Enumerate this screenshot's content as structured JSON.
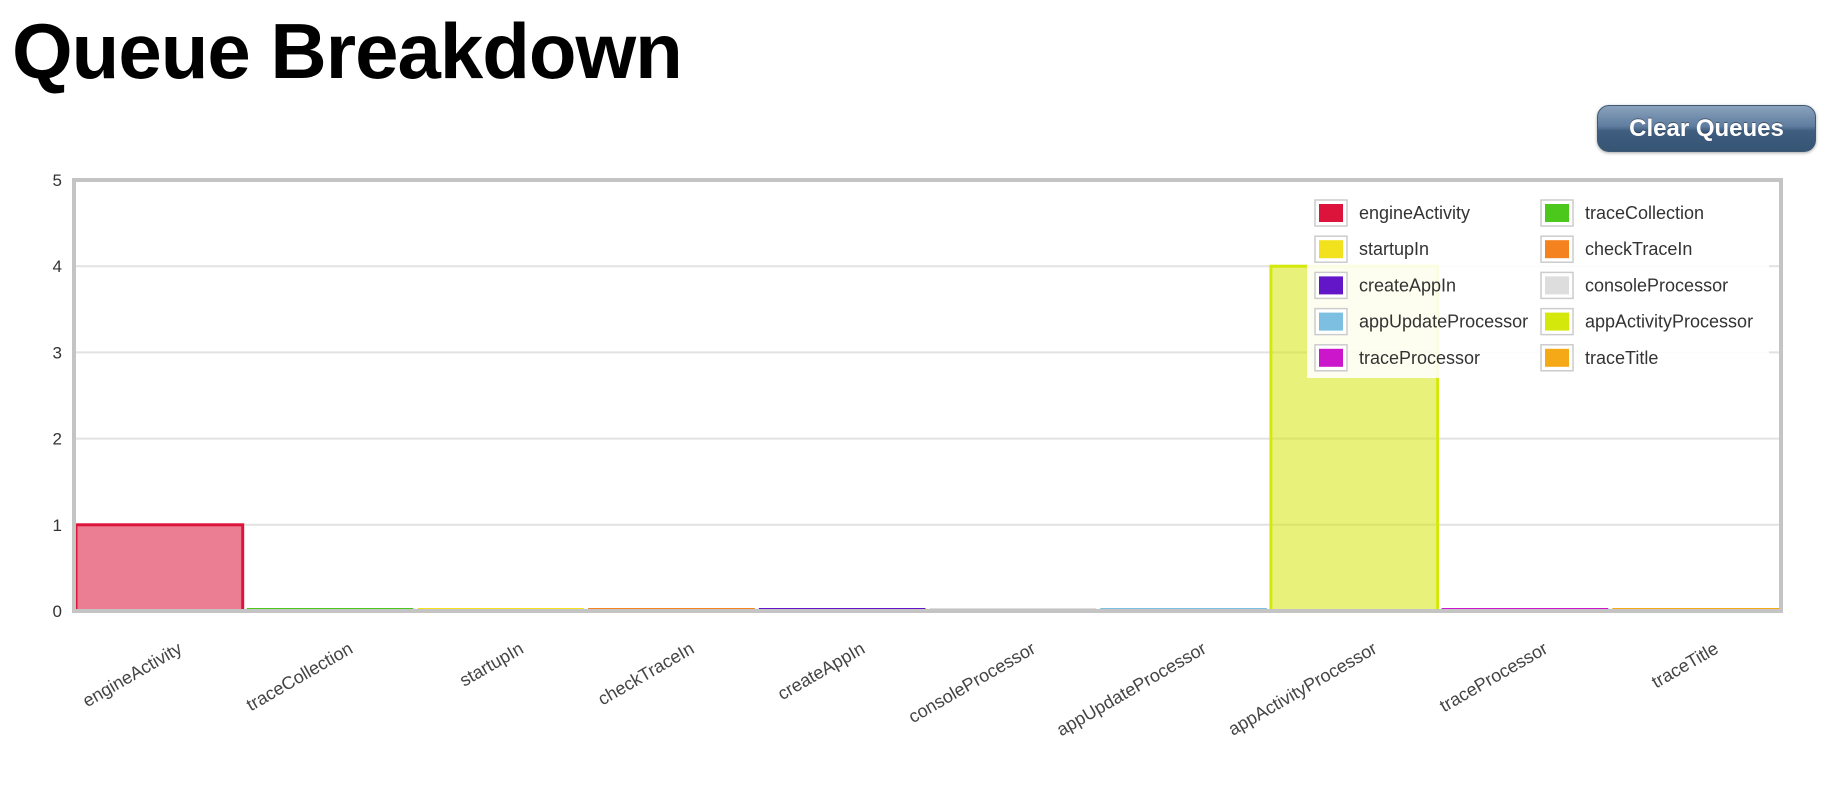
{
  "header": {
    "title": "Queue Breakdown"
  },
  "toolbar": {
    "clear_label": "Clear Queues"
  },
  "chart_data": {
    "type": "bar",
    "title": "",
    "xlabel": "",
    "ylabel": "",
    "ylim": [
      0,
      5
    ],
    "yticks": [
      0,
      1,
      2,
      3,
      4,
      5
    ],
    "grid": true,
    "legend_position": "top-right",
    "categories": [
      "engineActivity",
      "traceCollection",
      "startupIn",
      "checkTraceIn",
      "createAppIn",
      "consoleProcessor",
      "appUpdateProcessor",
      "appActivityProcessor",
      "traceProcessor",
      "traceTitle"
    ],
    "values": [
      1,
      0,
      0,
      0,
      0,
      0,
      0,
      4,
      0,
      0
    ],
    "colors": [
      "#dc143c",
      "#4cc81c",
      "#f2e21d",
      "#f4821e",
      "#6316c8",
      "#dddddd",
      "#7cbfe0",
      "#d5e80c",
      "#cc16cc",
      "#f6a917"
    ],
    "legend": [
      {
        "name": "engineActivity",
        "color": "#dc143c"
      },
      {
        "name": "traceCollection",
        "color": "#4cc81c"
      },
      {
        "name": "startupIn",
        "color": "#f2e21d"
      },
      {
        "name": "checkTraceIn",
        "color": "#f4821e"
      },
      {
        "name": "createAppIn",
        "color": "#6316c8"
      },
      {
        "name": "consoleProcessor",
        "color": "#dddddd"
      },
      {
        "name": "appUpdateProcessor",
        "color": "#7cbfe0"
      },
      {
        "name": "appActivityProcessor",
        "color": "#d5e80c"
      },
      {
        "name": "traceProcessor",
        "color": "#cc16cc"
      },
      {
        "name": "traceTitle",
        "color": "#f6a917"
      }
    ]
  }
}
